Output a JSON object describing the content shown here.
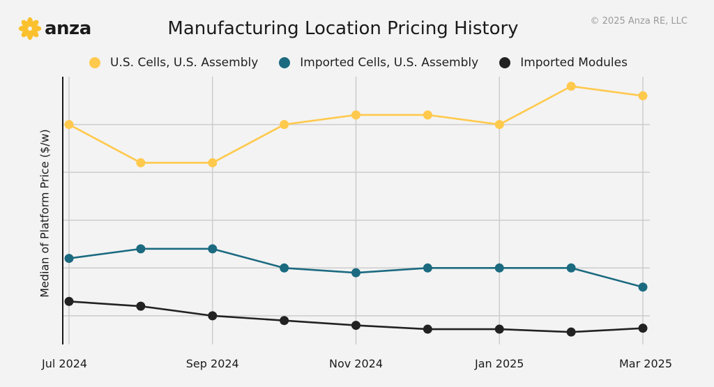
{
  "brand": {
    "name": "anza",
    "accent": "#fbc02d"
  },
  "copyright": "© 2025 Anza RE, LLC",
  "chart_data": {
    "type": "line",
    "title": "Manufacturing Location Pricing History",
    "ylabel": "Median of Platform Price ($/w)",
    "xlabel": "",
    "y_tick_labels_shown": false,
    "grid": true,
    "legend_placement": "top",
    "x": [
      "2024-07",
      "2024-08",
      "2024-09",
      "2024-10",
      "2024-11",
      "2024-12",
      "2025-01",
      "2025-02",
      "2025-03"
    ],
    "x_tick_labels": [
      {
        "x": "2024-07",
        "label": "Jul 2024"
      },
      {
        "x": "2024-09",
        "label": "Sep 2024"
      },
      {
        "x": "2024-11",
        "label": "Nov 2024"
      },
      {
        "x": "2025-01",
        "label": "Jan 2025"
      },
      {
        "x": "2025-03",
        "label": "Mar 2025"
      }
    ],
    "ylim": [
      0,
      5.6
    ],
    "y_gridlines": [
      0.6,
      1.6,
      2.6,
      3.6,
      4.6
    ],
    "series": [
      {
        "name": "U.S. Cells, U.S. Assembly",
        "color": "#ffc94d",
        "values": [
          4.6,
          3.8,
          3.8,
          4.6,
          4.8,
          4.8,
          4.6,
          5.4,
          5.2
        ]
      },
      {
        "name": "Imported Cells, U.S. Assembly",
        "color": "#1b6a80",
        "values": [
          1.8,
          2.0,
          2.0,
          1.6,
          1.5,
          1.6,
          1.6,
          1.6,
          1.2
        ]
      },
      {
        "name": "Imported Modules",
        "color": "#222222",
        "values": [
          0.9,
          0.8,
          0.6,
          0.5,
          0.4,
          0.32,
          0.32,
          0.26,
          0.34
        ]
      }
    ]
  }
}
